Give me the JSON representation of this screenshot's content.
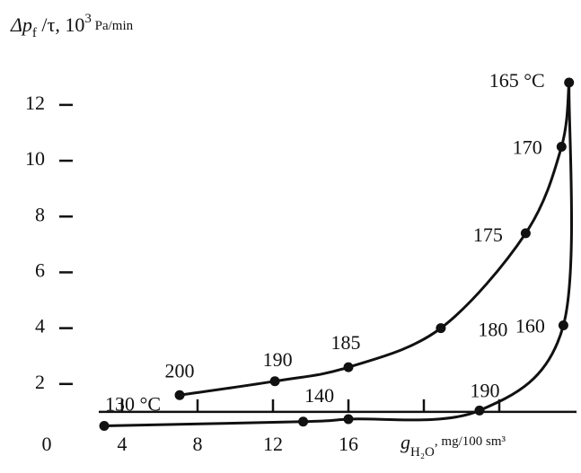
{
  "chart_data": {
    "type": "scatter_curve",
    "y_label": {
      "symbol": "Δp",
      "sub": "f",
      "rest": " /τ, 10",
      "sup": "3",
      "unit": " Pa/min"
    },
    "x_label": {
      "symbol": "g",
      "sub": "H₂O",
      "unit": ", mg/100 sm³"
    },
    "xlim": [
      0,
      28.5
    ],
    "ylim": [
      0,
      13.3
    ],
    "xticks": [
      0,
      4,
      8,
      12,
      16
    ],
    "x_tick_marks": [
      4,
      8,
      12,
      16,
      20,
      24
    ],
    "yticks": [
      2,
      4,
      6,
      8,
      10,
      12
    ],
    "x_axis_crossing": 1,
    "color": "#111111",
    "series": [
      {
        "x": [
          7.05,
          12.1,
          16.0,
          20.9,
          25.4,
          27.3,
          27.7
        ],
        "values": [
          1.6,
          2.1,
          2.6,
          4.0,
          7.4,
          10.5,
          12.8
        ],
        "labels": [
          "200",
          "190",
          "185",
          "180",
          "175",
          "170",
          "165 °C"
        ]
      },
      {
        "x": [
          3.05,
          13.6,
          16.0,
          22.95,
          27.4
        ],
        "values": [
          0.5,
          0.65,
          0.74,
          1.05,
          4.1
        ],
        "labels": [
          "130 °C",
          "140",
          null,
          "190",
          "160"
        ]
      }
    ]
  }
}
